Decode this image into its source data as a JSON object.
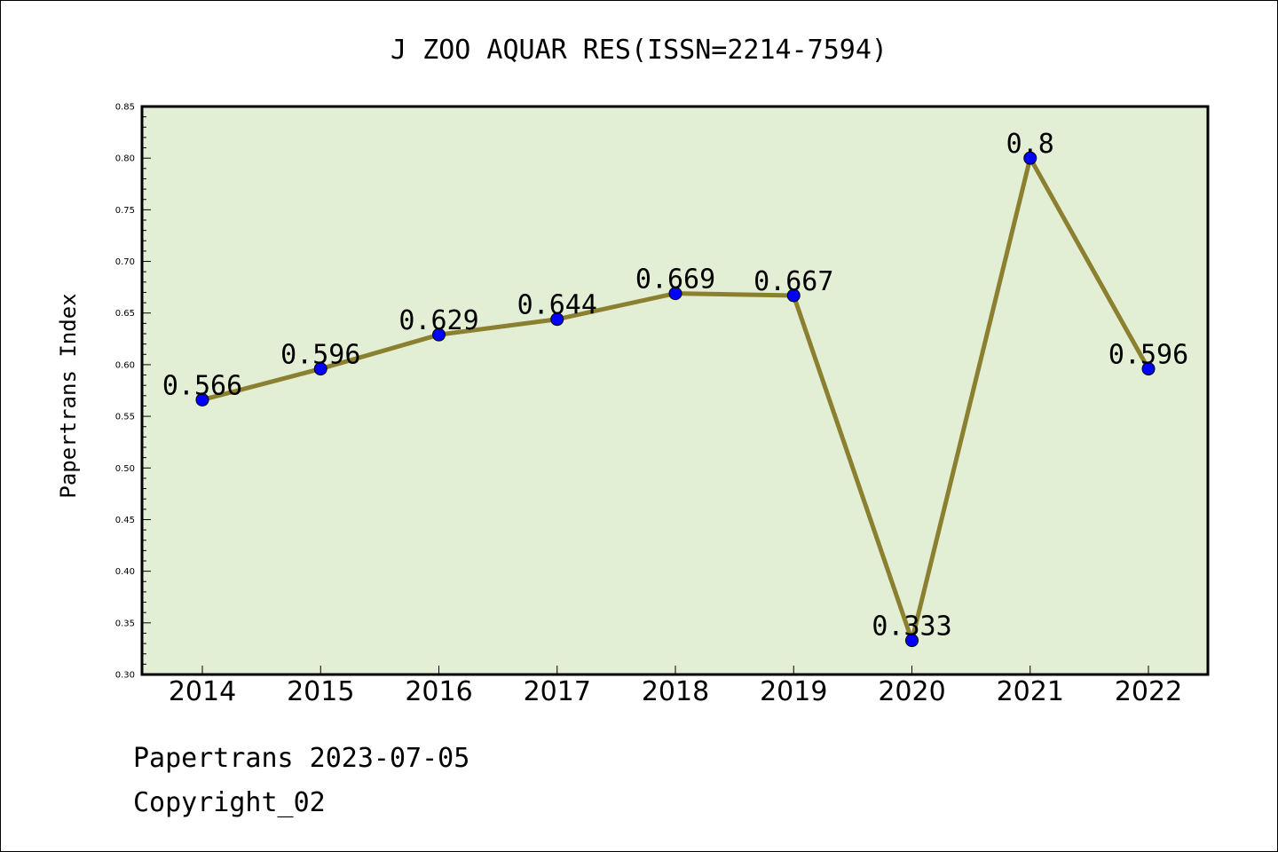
{
  "chart_data": {
    "type": "line",
    "title": "J ZOO AQUAR RES(ISSN=2214-7594)",
    "xlabel": "",
    "ylabel": "Papertrans Index",
    "categories": [
      "2014",
      "2015",
      "2016",
      "2017",
      "2018",
      "2019",
      "2020",
      "2021",
      "2022"
    ],
    "values": [
      0.566,
      0.596,
      0.629,
      0.644,
      0.669,
      0.667,
      0.333,
      0.8,
      0.596
    ],
    "data_labels": [
      "0.566",
      "0.596",
      "0.629",
      "0.644",
      "0.669",
      "0.667",
      "0.333",
      "0.8",
      "0.596"
    ],
    "ylim": [
      0.3,
      0.85
    ],
    "yticks": [
      "0.30",
      "0.35",
      "0.40",
      "0.45",
      "0.50",
      "0.55",
      "0.60",
      "0.65",
      "0.70",
      "0.75",
      "0.80",
      "0.85"
    ],
    "grid": false,
    "legend": "none",
    "colors": {
      "plot_background": "#e2efd5",
      "line": "#8b8030",
      "marker": "#0000ff",
      "axes": "#000000"
    }
  },
  "footer": {
    "source": "Papertrans 2023-07-05",
    "copyright": "Copyright_02"
  }
}
